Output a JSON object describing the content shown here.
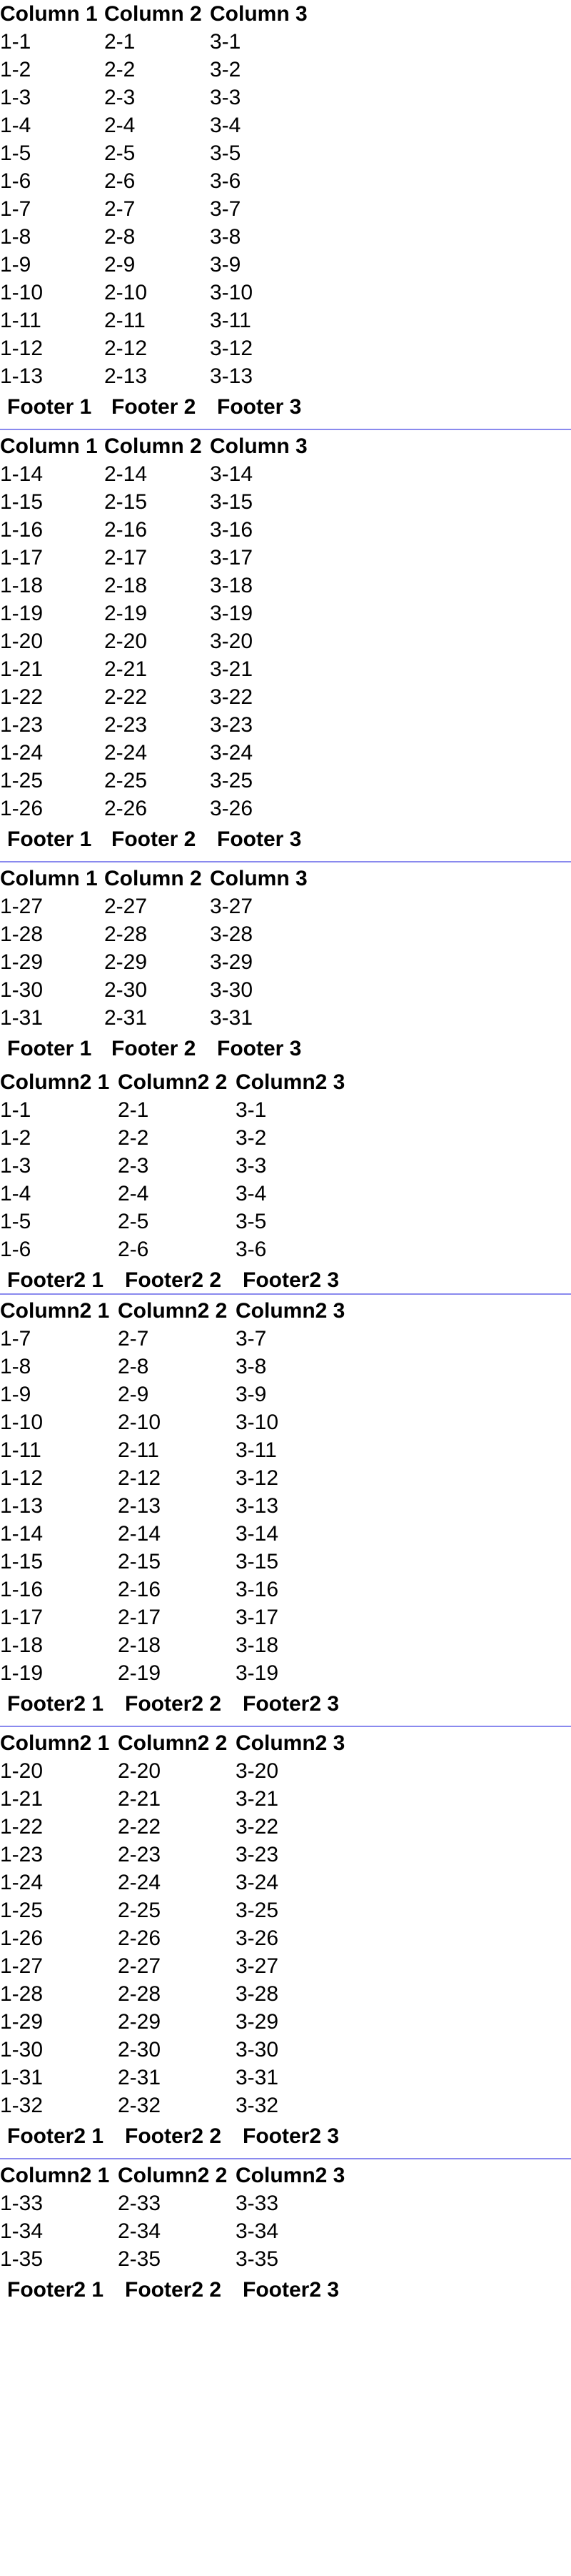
{
  "table1": {
    "headers": [
      "Column 1",
      "Column 2",
      "Column 3"
    ],
    "footers": [
      "Footer 1",
      "Footer 2",
      "Footer 3"
    ],
    "pages": [
      [
        [
          "1-1",
          "2-1",
          "3-1"
        ],
        [
          "1-2",
          "2-2",
          "3-2"
        ],
        [
          "1-3",
          "2-3",
          "3-3"
        ],
        [
          "1-4",
          "2-4",
          "3-4"
        ],
        [
          "1-5",
          "2-5",
          "3-5"
        ],
        [
          "1-6",
          "2-6",
          "3-6"
        ],
        [
          "1-7",
          "2-7",
          "3-7"
        ],
        [
          "1-8",
          "2-8",
          "3-8"
        ],
        [
          "1-9",
          "2-9",
          "3-9"
        ],
        [
          "1-10",
          "2-10",
          "3-10"
        ],
        [
          "1-11",
          "2-11",
          "3-11"
        ],
        [
          "1-12",
          "2-12",
          "3-12"
        ],
        [
          "1-13",
          "2-13",
          "3-13"
        ]
      ],
      [
        [
          "1-14",
          "2-14",
          "3-14"
        ],
        [
          "1-15",
          "2-15",
          "3-15"
        ],
        [
          "1-16",
          "2-16",
          "3-16"
        ],
        [
          "1-17",
          "2-17",
          "3-17"
        ],
        [
          "1-18",
          "2-18",
          "3-18"
        ],
        [
          "1-19",
          "2-19",
          "3-19"
        ],
        [
          "1-20",
          "2-20",
          "3-20"
        ],
        [
          "1-21",
          "2-21",
          "3-21"
        ],
        [
          "1-22",
          "2-22",
          "3-22"
        ],
        [
          "1-23",
          "2-23",
          "3-23"
        ],
        [
          "1-24",
          "2-24",
          "3-24"
        ],
        [
          "1-25",
          "2-25",
          "3-25"
        ],
        [
          "1-26",
          "2-26",
          "3-26"
        ]
      ],
      [
        [
          "1-27",
          "2-27",
          "3-27"
        ],
        [
          "1-28",
          "2-28",
          "3-28"
        ],
        [
          "1-29",
          "2-29",
          "3-29"
        ],
        [
          "1-30",
          "2-30",
          "3-30"
        ],
        [
          "1-31",
          "2-31",
          "3-31"
        ]
      ]
    ]
  },
  "table2": {
    "headers": [
      "Column2 1",
      "Column2 2",
      "Column2 3"
    ],
    "footers": [
      "Footer2 1",
      "Footer2 2",
      "Footer2 3"
    ],
    "pages": [
      [
        [
          "1-1",
          "2-1",
          "3-1"
        ],
        [
          "1-2",
          "2-2",
          "3-2"
        ],
        [
          "1-3",
          "2-3",
          "3-3"
        ],
        [
          "1-4",
          "2-4",
          "3-4"
        ],
        [
          "1-5",
          "2-5",
          "3-5"
        ],
        [
          "1-6",
          "2-6",
          "3-6"
        ]
      ],
      [
        [
          "1-7",
          "2-7",
          "3-7"
        ],
        [
          "1-8",
          "2-8",
          "3-8"
        ],
        [
          "1-9",
          "2-9",
          "3-9"
        ],
        [
          "1-10",
          "2-10",
          "3-10"
        ],
        [
          "1-11",
          "2-11",
          "3-11"
        ],
        [
          "1-12",
          "2-12",
          "3-12"
        ],
        [
          "1-13",
          "2-13",
          "3-13"
        ],
        [
          "1-14",
          "2-14",
          "3-14"
        ],
        [
          "1-15",
          "2-15",
          "3-15"
        ],
        [
          "1-16",
          "2-16",
          "3-16"
        ],
        [
          "1-17",
          "2-17",
          "3-17"
        ],
        [
          "1-18",
          "2-18",
          "3-18"
        ],
        [
          "1-19",
          "2-19",
          "3-19"
        ]
      ],
      [
        [
          "1-20",
          "2-20",
          "3-20"
        ],
        [
          "1-21",
          "2-21",
          "3-21"
        ],
        [
          "1-22",
          "2-22",
          "3-22"
        ],
        [
          "1-23",
          "2-23",
          "3-23"
        ],
        [
          "1-24",
          "2-24",
          "3-24"
        ],
        [
          "1-25",
          "2-25",
          "3-25"
        ],
        [
          "1-26",
          "2-26",
          "3-26"
        ],
        [
          "1-27",
          "2-27",
          "3-27"
        ],
        [
          "1-28",
          "2-28",
          "3-28"
        ],
        [
          "1-29",
          "2-29",
          "3-29"
        ],
        [
          "1-30",
          "2-30",
          "3-30"
        ],
        [
          "1-31",
          "2-31",
          "3-31"
        ],
        [
          "1-32",
          "2-32",
          "3-32"
        ]
      ],
      [
        [
          "1-33",
          "2-33",
          "3-33"
        ],
        [
          "1-34",
          "2-34",
          "3-34"
        ],
        [
          "1-35",
          "2-35",
          "3-35"
        ]
      ]
    ]
  },
  "colors": {
    "page_rule": "#8a8aee",
    "text": "#000000",
    "background": "#ffffff"
  }
}
